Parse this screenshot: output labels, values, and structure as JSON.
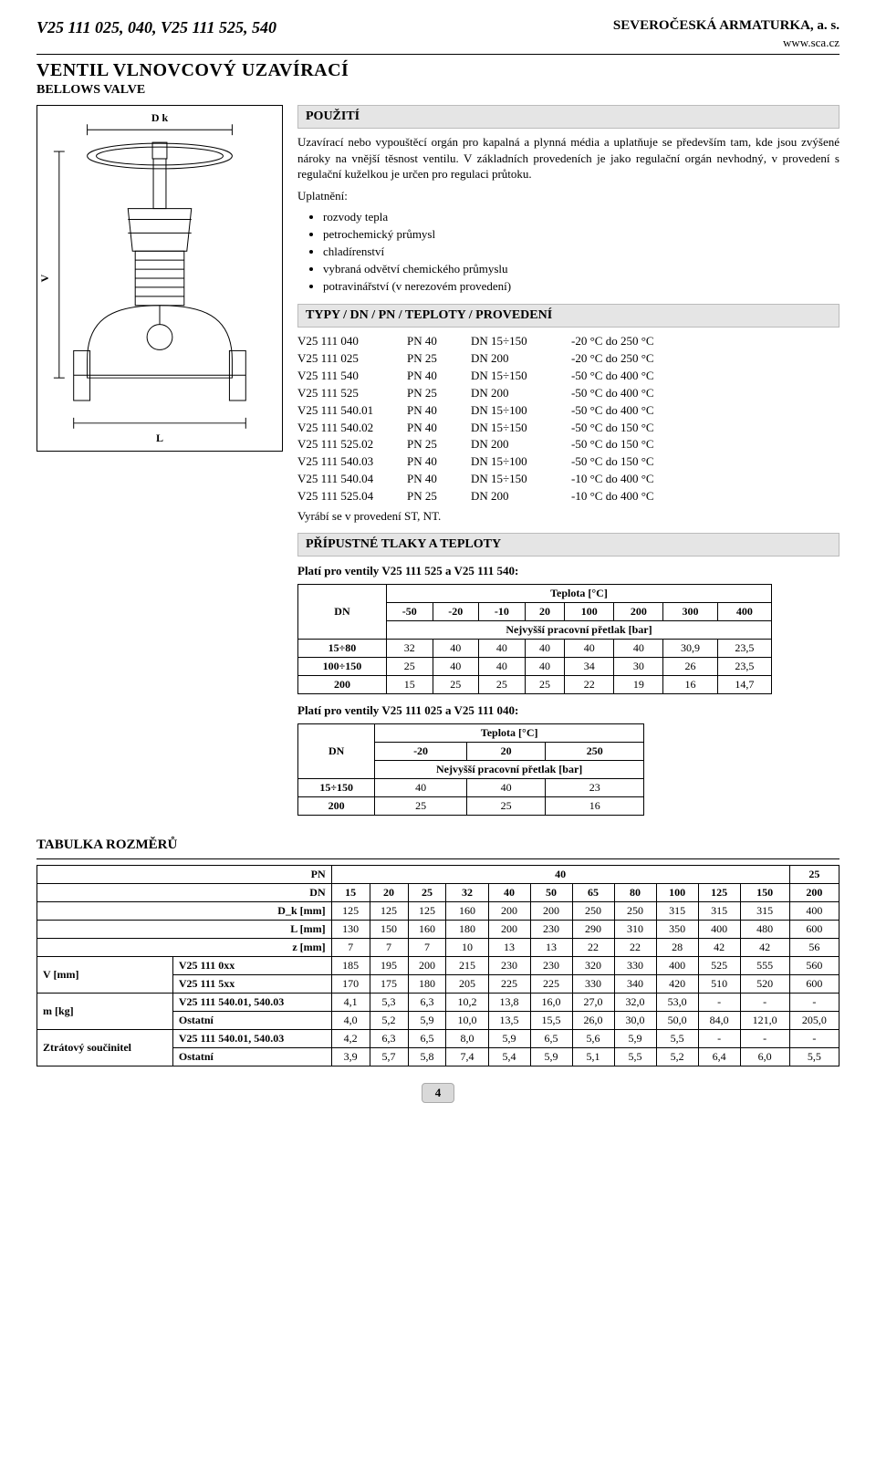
{
  "header": {
    "models": "V25 111 025, 040, V25 111 525, 540",
    "company": "SEVEROČESKÁ ARMATURKA, a. s.",
    "site": "www.sca.cz",
    "title_main": "VENTIL VLNOVCOVÝ UZAVÍRACÍ",
    "title_sub": "BELLOWS VALVE"
  },
  "diagram": {
    "dk": "D k",
    "v": "V",
    "l": "L"
  },
  "use": {
    "heading": "POUŽITÍ",
    "p1": "Uzavírací nebo vypouštěcí orgán pro kapalná a plynná média a uplatňuje se především tam, kde jsou zvýšené nároky na vnější těsnost ventilu. V základních provedeních je jako regulační orgán nevhodný, v provedení s regulační kuželkou je určen pro regulaci průtoku.",
    "p2": "Uplatnění:",
    "bullets": [
      "rozvody tepla",
      "petrochemický průmysl",
      "chladírenství",
      "vybraná odvětví chemického průmyslu",
      "potravinářství (v nerezovém provedení)"
    ]
  },
  "types": {
    "heading": "TYPY / DN / PN / TEPLOTY / PROVEDENÍ",
    "rows": [
      [
        "V25 111 040",
        "PN 40",
        "DN 15÷150",
        "-20 °C do 250 °C"
      ],
      [
        "V25 111 025",
        "PN 25",
        "DN 200",
        "-20 °C do 250 °C"
      ],
      [
        "V25 111 540",
        "PN 40",
        "DN 15÷150",
        "-50 °C do 400 °C"
      ],
      [
        "V25 111 525",
        "PN 25",
        "DN 200",
        "-50 °C do 400 °C"
      ],
      [
        "V25 111 540.01",
        "PN 40",
        "DN 15÷100",
        "-50 °C do 400 °C"
      ],
      [
        "V25 111 540.02",
        "PN 40",
        "DN 15÷150",
        "-50 °C do 150 °C"
      ],
      [
        "V25 111 525.02",
        "PN 25",
        "DN 200",
        "-50 °C do 150 °C"
      ],
      [
        "V25 111 540.03",
        "PN 40",
        "DN 15÷100",
        "-50 °C do 150 °C"
      ],
      [
        "V25 111 540.04",
        "PN 40",
        "DN 15÷150",
        "-10 °C do 400 °C"
      ],
      [
        "V25 111 525.04",
        "PN 25",
        "DN 200",
        "-10 °C do 400 °C"
      ]
    ],
    "note": "Vyrábí se v provedení ST, NT."
  },
  "pressures": {
    "heading": "PŘÍPUSTNÉ TLAKY A TEPLOTY",
    "sub1": "Platí pro ventily V25 111 525 a V25 111 540:",
    "table1": {
      "dn_label": "DN",
      "temp_label": "Teplota [°C]",
      "sub_label": "Nejvyšší pracovní přetlak [bar]",
      "temps": [
        "-50",
        "-20",
        "-10",
        "20",
        "100",
        "200",
        "300",
        "400"
      ],
      "rows": [
        {
          "dn": "15÷80",
          "vals": [
            "32",
            "40",
            "40",
            "40",
            "40",
            "40",
            "30,9",
            "23,5"
          ]
        },
        {
          "dn": "100÷150",
          "vals": [
            "25",
            "40",
            "40",
            "40",
            "34",
            "30",
            "26",
            "23,5"
          ]
        },
        {
          "dn": "200",
          "vals": [
            "15",
            "25",
            "25",
            "25",
            "22",
            "19",
            "16",
            "14,7"
          ]
        }
      ]
    },
    "sub2": "Platí pro ventily V25 111 025 a V25 111 040:",
    "table2": {
      "dn_label": "DN",
      "temp_label": "Teplota [°C]",
      "sub_label": "Nejvyšší pracovní přetlak [bar]",
      "temps": [
        "-20",
        "20",
        "250"
      ],
      "rows": [
        {
          "dn": "15÷150",
          "vals": [
            "40",
            "40",
            "23"
          ]
        },
        {
          "dn": "200",
          "vals": [
            "25",
            "25",
            "16"
          ]
        }
      ]
    }
  },
  "dims": {
    "heading": "TABULKA ROZMĚRŮ",
    "pn_label": "PN",
    "pn_vals": [
      "40",
      "25"
    ],
    "dn_label": "DN",
    "dn_vals": [
      "15",
      "20",
      "25",
      "32",
      "40",
      "50",
      "65",
      "80",
      "100",
      "125",
      "150",
      "200"
    ],
    "rows": [
      {
        "label": "D_k [mm]",
        "vals": [
          "125",
          "125",
          "125",
          "160",
          "200",
          "200",
          "250",
          "250",
          "315",
          "315",
          "315",
          "400"
        ]
      },
      {
        "label": "L [mm]",
        "vals": [
          "130",
          "150",
          "160",
          "180",
          "200",
          "230",
          "290",
          "310",
          "350",
          "400",
          "480",
          "600"
        ]
      },
      {
        "label": "z [mm]",
        "vals": [
          "7",
          "7",
          "7",
          "10",
          "13",
          "13",
          "22",
          "22",
          "28",
          "42",
          "42",
          "56"
        ]
      }
    ],
    "groupV": {
      "group_label": "V [mm]",
      "rows": [
        {
          "label": "V25 111 0xx",
          "vals": [
            "185",
            "195",
            "200",
            "215",
            "230",
            "230",
            "320",
            "330",
            "400",
            "525",
            "555",
            "560"
          ]
        },
        {
          "label": "V25 111 5xx",
          "vals": [
            "170",
            "175",
            "180",
            "205",
            "225",
            "225",
            "330",
            "340",
            "420",
            "510",
            "520",
            "600"
          ]
        }
      ]
    },
    "groupM": {
      "group_label": "m [kg]",
      "rows": [
        {
          "label": "V25 111 540.01, 540.03",
          "vals": [
            "4,1",
            "5,3",
            "6,3",
            "10,2",
            "13,8",
            "16,0",
            "27,0",
            "32,0",
            "53,0",
            "-",
            "-",
            "-"
          ]
        },
        {
          "label": "Ostatní",
          "vals": [
            "4,0",
            "5,2",
            "5,9",
            "10,0",
            "13,5",
            "15,5",
            "26,0",
            "30,0",
            "50,0",
            "84,0",
            "121,0",
            "205,0"
          ]
        }
      ]
    },
    "groupZ": {
      "group_label": "Ztrátový součinitel",
      "rows": [
        {
          "label": "V25 111 540.01, 540.03",
          "vals": [
            "4,2",
            "6,3",
            "6,5",
            "8,0",
            "5,9",
            "6,5",
            "5,6",
            "5,9",
            "5,5",
            "-",
            "-",
            "-"
          ]
        },
        {
          "label": "Ostatní",
          "vals": [
            "3,9",
            "5,7",
            "5,8",
            "7,4",
            "5,4",
            "5,9",
            "5,1",
            "5,5",
            "5,2",
            "6,4",
            "6,0",
            "5,5"
          ]
        }
      ]
    }
  },
  "page_number": "4",
  "colors": {
    "bar_bg": "#e5e5e5",
    "page_num_bg": "#d9d9d9"
  }
}
